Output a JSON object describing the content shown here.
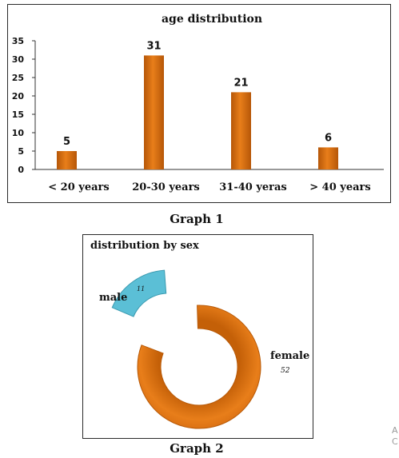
{
  "chart_data": [
    {
      "type": "bar",
      "title": "age distribution",
      "categories": [
        "< 20  years",
        "20-30  years",
        "31-40  yeras",
        "> 40  years"
      ],
      "values": [
        5,
        31,
        21,
        6
      ],
      "ylim": [
        0,
        35
      ],
      "yticks": [
        "0",
        "5",
        "10",
        "15",
        "20",
        "25",
        "30",
        "35"
      ],
      "data_labels": [
        "5",
        "31",
        "21",
        "6"
      ],
      "grid": false,
      "colors": {
        "bar": "#e87e1a",
        "bar_dark": "#b65708"
      }
    },
    {
      "type": "pie",
      "title": "distribution by sex",
      "labels": [
        "male",
        "female"
      ],
      "values": [
        11,
        52
      ],
      "value_labels": [
        "11",
        "52"
      ],
      "style": "exploded doughnut",
      "colors": {
        "male": "#5bbfd6",
        "female": "#e87e1a"
      }
    }
  ],
  "captions": {
    "graph1": "Graph 1",
    "graph2": "Graph 2"
  },
  "edge_fragment": "A\nC"
}
